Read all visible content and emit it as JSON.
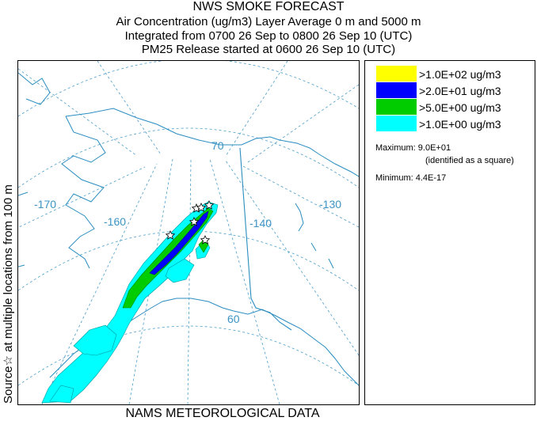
{
  "title": {
    "line1": "NWS SMOKE FORECAST",
    "line2": "Air Concentration (ug/m3) Layer Average    0 m and  5000 m",
    "line3": "Integrated from 0700 26 Sep to 0800 26 Sep 10 (UTC)",
    "line4": "PM25 Release started at 0600 26 Sep 10 (UTC)"
  },
  "vertical_label": "Source☆   at multiple locations   from   100 m",
  "footer": "NAMS METEOROLOGICAL DATA",
  "map": {
    "grid_labels": {
      "lon_170": "-170",
      "lon_160": "-160",
      "lon_140": "-140",
      "lon_130": "-130",
      "lat_70": "70",
      "lat_60": "60"
    },
    "colors": {
      "coast": "#2a8dc0",
      "grid": "#4a9ec9"
    }
  },
  "legend": {
    "items": [
      {
        "label": ">1.0E+02 ug/m3",
        "color": "#ffff00"
      },
      {
        "label": ">2.0E+01 ug/m3",
        "color": "#0000ff"
      },
      {
        "label": ">5.0E+00 ug/m3",
        "color": "#00cc00"
      },
      {
        "label": ">1.0E+00 ug/m3",
        "color": "#00ffff"
      }
    ],
    "maximum_label": "Maximum: 9.0E+01",
    "maximum_note": "(identified as a square)",
    "minimum_label": "Minimum: 4.4E-17"
  }
}
